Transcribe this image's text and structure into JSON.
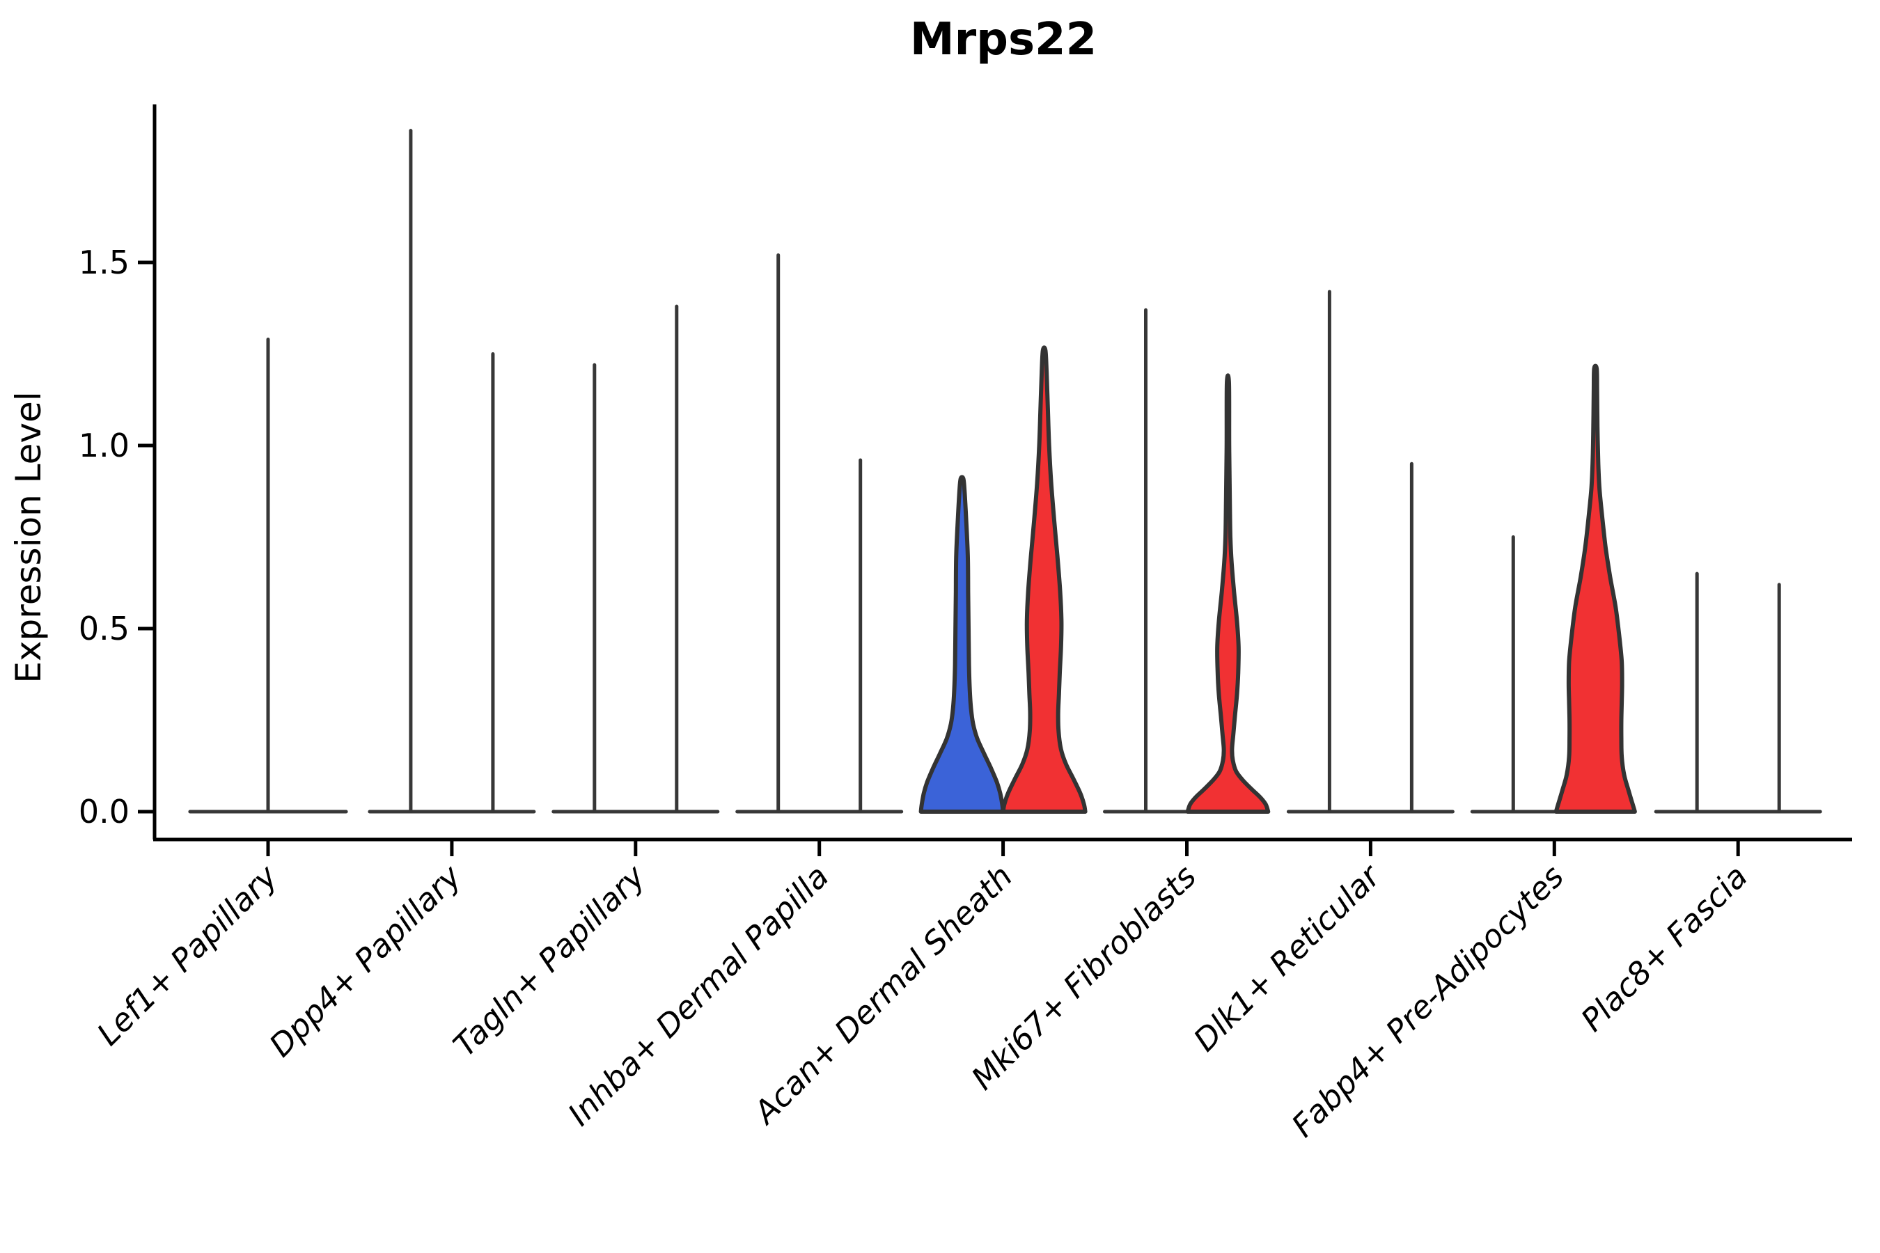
{
  "figure": {
    "title": "Mrps22",
    "ylabel": "Expression Level"
  },
  "chart_data": {
    "type": "violin",
    "title": "Mrps22",
    "xlabel": "",
    "ylabel": "Expression Level",
    "ylim": [
      -0.08,
      1.93
    ],
    "yticks": [
      0.0,
      0.5,
      1.0,
      1.5
    ],
    "ytick_labels": [
      "0.0",
      "0.5",
      "1.0",
      "1.5"
    ],
    "grid": false,
    "legend_position": "none",
    "colors": {
      "outline": "#333333",
      "spike": "#373737",
      "axis": "#000000",
      "blue_fill": "#3B63D8",
      "red_fill": "#F13133",
      "background": "#ffffff"
    },
    "categories": [
      "Lef1+ Papillary",
      "Dpp4+ Papillary",
      "Tagln+ Papillary",
      "Inhba+ Dermal Papilla",
      "Acan+ Dermal Sheath",
      "Mki67+ Fibroblasts",
      "Dlk1+ Reticular",
      "Fabp4+ Pre-Adipocytes",
      "Plac8+ Fascia"
    ],
    "violins": [
      {
        "category": "Lef1+ Papillary",
        "position": "center",
        "fill": "none",
        "shape": "spike",
        "max": 1.29,
        "base_halfwidth_ratio": 1.9
      },
      {
        "category": "Dpp4+ Papillary",
        "position": "left",
        "fill": "none",
        "shape": "spike",
        "max": 1.86
      },
      {
        "category": "Dpp4+ Papillary",
        "position": "right",
        "fill": "none",
        "shape": "spike",
        "max": 1.25
      },
      {
        "category": "Tagln+ Papillary",
        "position": "left",
        "fill": "none",
        "shape": "spike",
        "max": 1.22
      },
      {
        "category": "Tagln+ Papillary",
        "position": "right",
        "fill": "none",
        "shape": "spike",
        "max": 1.38
      },
      {
        "category": "Inhba+ Dermal Papilla",
        "position": "left",
        "fill": "none",
        "shape": "spike",
        "max": 1.52
      },
      {
        "category": "Inhba+ Dermal Papilla",
        "position": "right",
        "fill": "none",
        "shape": "spike",
        "max": 0.96
      },
      {
        "category": "Acan+ Dermal Sheath",
        "position": "left",
        "fill": "blue",
        "shape": "violin",
        "max": 0.91,
        "profile": [
          [
            0.91,
            0.03
          ],
          [
            0.88,
            0.06
          ],
          [
            0.8,
            0.1
          ],
          [
            0.7,
            0.14
          ],
          [
            0.6,
            0.15
          ],
          [
            0.5,
            0.16
          ],
          [
            0.4,
            0.17
          ],
          [
            0.33,
            0.19
          ],
          [
            0.28,
            0.22
          ],
          [
            0.24,
            0.27
          ],
          [
            0.2,
            0.37
          ],
          [
            0.16,
            0.53
          ],
          [
            0.12,
            0.7
          ],
          [
            0.08,
            0.85
          ],
          [
            0.05,
            0.93
          ],
          [
            0.02,
            0.98
          ],
          [
            0.0,
            1.0
          ]
        ]
      },
      {
        "category": "Acan+ Dermal Sheath",
        "position": "right",
        "fill": "red",
        "shape": "violin",
        "max": 1.26,
        "profile": [
          [
            1.26,
            0.03
          ],
          [
            1.2,
            0.06
          ],
          [
            1.1,
            0.09
          ],
          [
            1.0,
            0.12
          ],
          [
            0.9,
            0.17
          ],
          [
            0.8,
            0.24
          ],
          [
            0.7,
            0.32
          ],
          [
            0.6,
            0.39
          ],
          [
            0.52,
            0.42
          ],
          [
            0.45,
            0.41
          ],
          [
            0.38,
            0.38
          ],
          [
            0.32,
            0.36
          ],
          [
            0.27,
            0.34
          ],
          [
            0.22,
            0.35
          ],
          [
            0.17,
            0.41
          ],
          [
            0.13,
            0.53
          ],
          [
            0.09,
            0.71
          ],
          [
            0.05,
            0.88
          ],
          [
            0.02,
            0.97
          ],
          [
            0.0,
            1.0
          ]
        ]
      },
      {
        "category": "Mki67+ Fibroblasts",
        "position": "left",
        "fill": "none",
        "shape": "spike",
        "max": 1.37
      },
      {
        "category": "Mki67+ Fibroblasts",
        "position": "right",
        "fill": "red",
        "shape": "violin",
        "max": 1.17,
        "profile": [
          [
            1.17,
            0.025
          ],
          [
            1.0,
            0.03
          ],
          [
            0.85,
            0.045
          ],
          [
            0.75,
            0.06
          ],
          [
            0.68,
            0.09
          ],
          [
            0.6,
            0.15
          ],
          [
            0.52,
            0.22
          ],
          [
            0.45,
            0.26
          ],
          [
            0.38,
            0.25
          ],
          [
            0.32,
            0.22
          ],
          [
            0.26,
            0.17
          ],
          [
            0.21,
            0.13
          ],
          [
            0.17,
            0.1
          ],
          [
            0.14,
            0.12
          ],
          [
            0.11,
            0.2
          ],
          [
            0.085,
            0.37
          ],
          [
            0.06,
            0.59
          ],
          [
            0.04,
            0.78
          ],
          [
            0.02,
            0.92
          ],
          [
            0.0,
            0.98
          ]
        ]
      },
      {
        "category": "Dlk1+ Reticular",
        "position": "left",
        "fill": "none",
        "shape": "spike",
        "max": 1.42
      },
      {
        "category": "Dlk1+ Reticular",
        "position": "right",
        "fill": "none",
        "shape": "spike",
        "max": 0.95
      },
      {
        "category": "Fabp4+ Pre-Adipocytes",
        "position": "left",
        "fill": "none",
        "shape": "spike",
        "max": 0.75
      },
      {
        "category": "Fabp4+ Pre-Adipocytes",
        "position": "right",
        "fill": "red",
        "shape": "violin",
        "max": 1.21,
        "profile": [
          [
            1.21,
            0.03
          ],
          [
            1.15,
            0.04
          ],
          [
            1.05,
            0.05
          ],
          [
            0.95,
            0.07
          ],
          [
            0.88,
            0.1
          ],
          [
            0.8,
            0.17
          ],
          [
            0.72,
            0.25
          ],
          [
            0.64,
            0.36
          ],
          [
            0.56,
            0.49
          ],
          [
            0.48,
            0.58
          ],
          [
            0.41,
            0.64
          ],
          [
            0.35,
            0.65
          ],
          [
            0.3,
            0.64
          ],
          [
            0.25,
            0.63
          ],
          [
            0.2,
            0.63
          ],
          [
            0.15,
            0.64
          ],
          [
            0.1,
            0.7
          ],
          [
            0.06,
            0.8
          ],
          [
            0.03,
            0.88
          ],
          [
            0.0,
            0.96
          ]
        ]
      },
      {
        "category": "Plac8+ Fascia",
        "position": "left",
        "fill": "none",
        "shape": "spike",
        "max": 0.65
      },
      {
        "category": "Plac8+ Fascia",
        "position": "right",
        "fill": "none",
        "shape": "spike",
        "max": 0.62
      }
    ]
  }
}
